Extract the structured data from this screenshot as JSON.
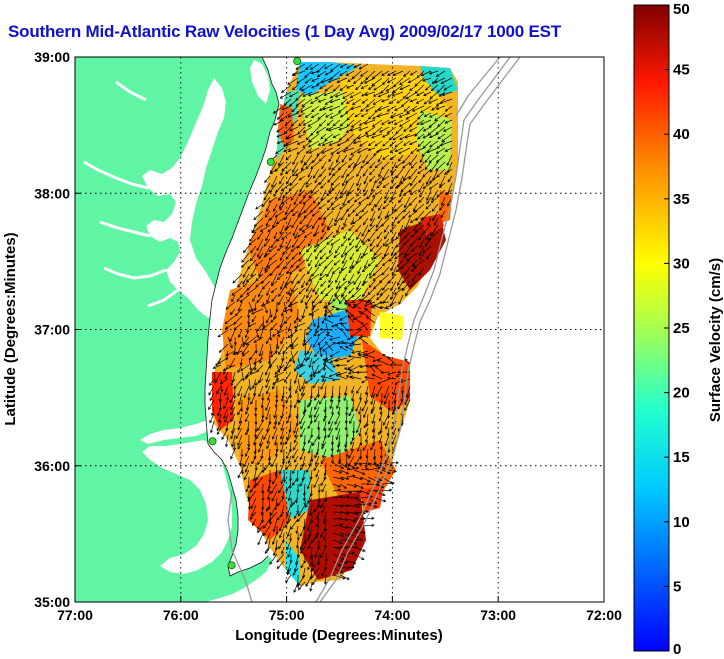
{
  "title": "Southern Mid-Atlantic Raw Velocities (1 Day Avg) 2009/02/17 1000 EST",
  "map": {
    "x_axis_label": "Longitude (Degrees:Minutes)",
    "y_axis_label": "Latitude (Degrees:Minutes)",
    "x_ticks": [
      "77:00",
      "76:00",
      "75:00",
      "74:00",
      "73:00",
      "72:00"
    ],
    "y_ticks": [
      "39:00",
      "38:00",
      "37:00",
      "36:00",
      "35:00"
    ],
    "x_range_deg": [
      -77,
      -72
    ],
    "y_range_deg": [
      35,
      39
    ],
    "land_color": "#5ff5a5",
    "grid": "dotted"
  },
  "colorbar": {
    "label": "Surface Velocity (cm/s)",
    "ticks": [
      "50",
      "45",
      "40",
      "35",
      "30",
      "25",
      "20",
      "15",
      "10",
      "5",
      "0"
    ],
    "range": [
      0,
      50
    ],
    "colormap": "jet"
  },
  "stations": [
    {
      "lon": -74.9,
      "lat": 38.97
    },
    {
      "lon": -75.15,
      "lat": 38.23
    },
    {
      "lon": -75.7,
      "lat": 36.18
    },
    {
      "lon": -75.52,
      "lat": 35.27
    }
  ]
}
